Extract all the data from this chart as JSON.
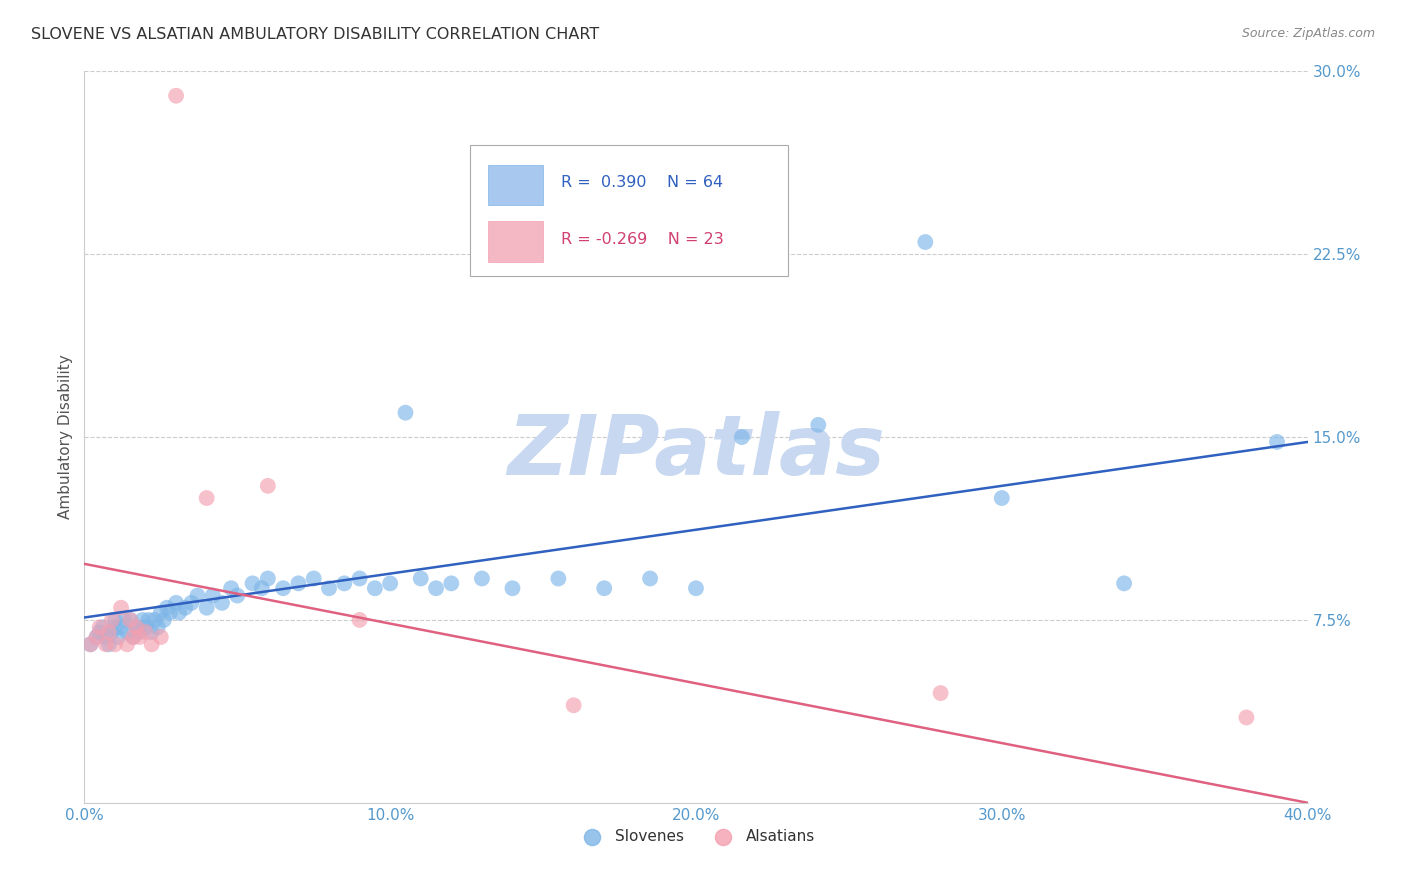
{
  "title": "SLOVENE VS ALSATIAN AMBULATORY DISABILITY CORRELATION CHART",
  "source": "Source: ZipAtlas.com",
  "ylabel": "Ambulatory Disability",
  "xlim": [
    0.0,
    0.4
  ],
  "ylim": [
    0.0,
    0.3
  ],
  "xticks": [
    0.0,
    0.1,
    0.2,
    0.3,
    0.4
  ],
  "yticks": [
    0.075,
    0.15,
    0.225,
    0.3
  ],
  "ytick_labels": [
    "7.5%",
    "15.0%",
    "22.5%",
    "30.0%"
  ],
  "xtick_labels": [
    "0.0%",
    "10.0%",
    "20.0%",
    "30.0%",
    "40.0%"
  ],
  "slovene_color": "#7EB6E8",
  "alsatian_color": "#F4A0B0",
  "line_slovene_color": "#3060C0",
  "line_alsatian_color": "#E06080",
  "slovene_R": 0.39,
  "slovene_N": 64,
  "alsatian_R": -0.269,
  "alsatian_N": 23,
  "slovene_x": [
    0.002,
    0.004,
    0.005,
    0.006,
    0.007,
    0.008,
    0.009,
    0.01,
    0.01,
    0.011,
    0.012,
    0.013,
    0.014,
    0.015,
    0.016,
    0.017,
    0.018,
    0.019,
    0.02,
    0.021,
    0.022,
    0.023,
    0.024,
    0.025,
    0.026,
    0.027,
    0.028,
    0.03,
    0.031,
    0.033,
    0.035,
    0.037,
    0.04,
    0.042,
    0.045,
    0.048,
    0.05,
    0.055,
    0.058,
    0.06,
    0.065,
    0.07,
    0.075,
    0.08,
    0.085,
    0.09,
    0.095,
    0.1,
    0.105,
    0.11,
    0.115,
    0.12,
    0.13,
    0.14,
    0.155,
    0.17,
    0.185,
    0.2,
    0.215,
    0.24,
    0.275,
    0.3,
    0.34,
    0.39
  ],
  "slovene_y": [
    0.065,
    0.068,
    0.07,
    0.072,
    0.068,
    0.065,
    0.07,
    0.072,
    0.075,
    0.068,
    0.072,
    0.075,
    0.07,
    0.075,
    0.068,
    0.072,
    0.07,
    0.075,
    0.072,
    0.075,
    0.07,
    0.075,
    0.072,
    0.078,
    0.075,
    0.08,
    0.078,
    0.082,
    0.078,
    0.08,
    0.082,
    0.085,
    0.08,
    0.085,
    0.082,
    0.088,
    0.085,
    0.09,
    0.088,
    0.092,
    0.088,
    0.09,
    0.092,
    0.088,
    0.09,
    0.092,
    0.088,
    0.09,
    0.16,
    0.092,
    0.088,
    0.09,
    0.092,
    0.088,
    0.092,
    0.088,
    0.092,
    0.088,
    0.15,
    0.155,
    0.23,
    0.125,
    0.09,
    0.148
  ],
  "alsatian_x": [
    0.002,
    0.004,
    0.005,
    0.007,
    0.008,
    0.009,
    0.01,
    0.012,
    0.014,
    0.015,
    0.016,
    0.017,
    0.018,
    0.02,
    0.022,
    0.025,
    0.03,
    0.04,
    0.06,
    0.09,
    0.16,
    0.28,
    0.38
  ],
  "alsatian_y": [
    0.065,
    0.068,
    0.072,
    0.065,
    0.07,
    0.075,
    0.065,
    0.08,
    0.065,
    0.075,
    0.068,
    0.072,
    0.068,
    0.07,
    0.065,
    0.068,
    0.29,
    0.125,
    0.13,
    0.075,
    0.04,
    0.045,
    0.035
  ],
  "slovene_line_x": [
    0.0,
    0.4
  ],
  "slovene_line_y": [
    0.076,
    0.148
  ],
  "alsatian_line_x": [
    0.0,
    0.4
  ],
  "alsatian_line_y": [
    0.098,
    0.0
  ],
  "background_color": "#FFFFFF",
  "grid_color": "#CCCCCC",
  "watermark_text": "ZIPatlas",
  "watermark_color": "#C8D8F0"
}
